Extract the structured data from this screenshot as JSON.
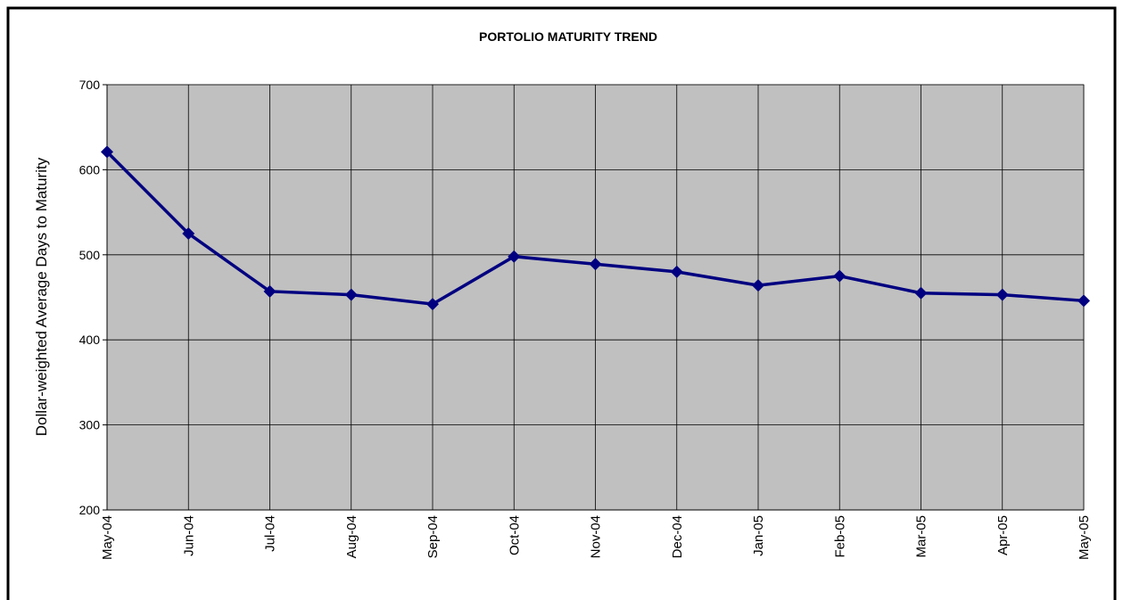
{
  "chart_data": {
    "type": "line",
    "title": "PORTOLIO MATURITY TREND",
    "y_label": "Dollar-weighted Average Days to Maturity",
    "categories": [
      "May-04",
      "Jun-04",
      "Jul-04",
      "Aug-04",
      "Sep-04",
      "Oct-04",
      "Nov-04",
      "Dec-04",
      "Jan-05",
      "Feb-05",
      "Mar-05",
      "Apr-05",
      "May-05"
    ],
    "series": [
      {
        "color": "#000080",
        "values": [
          621,
          525,
          457,
          453,
          442,
          498,
          489,
          480,
          464,
          475,
          455,
          453,
          446
        ]
      }
    ],
    "ylim": [
      200,
      700
    ],
    "yticks": [
      200,
      300,
      400,
      500,
      600,
      700
    ],
    "grid": true
  }
}
